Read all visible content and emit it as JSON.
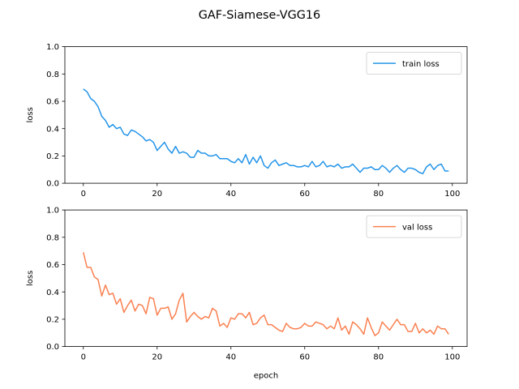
{
  "figure": {
    "title": "GAF-Siamese-VGG16"
  },
  "chart_data": [
    {
      "type": "line",
      "title": "",
      "xlabel": "",
      "ylabel": "loss",
      "xlim": [
        -5,
        104
      ],
      "ylim": [
        0,
        1.0
      ],
      "xticks": [
        0,
        20,
        40,
        60,
        80,
        100
      ],
      "yticks": [
        0.0,
        0.2,
        0.4,
        0.6,
        0.8,
        1.0
      ],
      "grid": false,
      "legend_position": "top-right",
      "series": [
        {
          "name": "train loss",
          "color": "#2394e8",
          "x": [
            0,
            1,
            2,
            3,
            4,
            5,
            6,
            7,
            8,
            9,
            10,
            11,
            12,
            13,
            14,
            15,
            16,
            17,
            18,
            19,
            20,
            21,
            22,
            23,
            24,
            25,
            26,
            27,
            28,
            29,
            30,
            31,
            32,
            33,
            34,
            35,
            36,
            37,
            38,
            39,
            40,
            41,
            42,
            43,
            44,
            45,
            46,
            47,
            48,
            49,
            50,
            51,
            52,
            53,
            54,
            55,
            56,
            57,
            58,
            59,
            60,
            61,
            62,
            63,
            64,
            65,
            66,
            67,
            68,
            69,
            70,
            71,
            72,
            73,
            74,
            75,
            76,
            77,
            78,
            79,
            80,
            81,
            82,
            83,
            84,
            85,
            86,
            87,
            88,
            89,
            90,
            91,
            92,
            93,
            94,
            95,
            96,
            97,
            98,
            99
          ],
          "values": [
            0.69,
            0.67,
            0.62,
            0.6,
            0.56,
            0.49,
            0.46,
            0.41,
            0.43,
            0.4,
            0.41,
            0.36,
            0.35,
            0.39,
            0.38,
            0.36,
            0.34,
            0.31,
            0.32,
            0.3,
            0.24,
            0.27,
            0.3,
            0.25,
            0.22,
            0.27,
            0.22,
            0.23,
            0.22,
            0.19,
            0.19,
            0.24,
            0.22,
            0.22,
            0.2,
            0.2,
            0.21,
            0.18,
            0.18,
            0.18,
            0.16,
            0.15,
            0.18,
            0.15,
            0.21,
            0.14,
            0.19,
            0.15,
            0.2,
            0.13,
            0.11,
            0.15,
            0.17,
            0.13,
            0.14,
            0.15,
            0.13,
            0.13,
            0.12,
            0.12,
            0.13,
            0.12,
            0.16,
            0.12,
            0.13,
            0.16,
            0.12,
            0.13,
            0.12,
            0.14,
            0.11,
            0.12,
            0.12,
            0.14,
            0.11,
            0.08,
            0.11,
            0.11,
            0.12,
            0.1,
            0.1,
            0.13,
            0.11,
            0.08,
            0.11,
            0.13,
            0.1,
            0.08,
            0.11,
            0.11,
            0.1,
            0.08,
            0.07,
            0.12,
            0.14,
            0.1,
            0.13,
            0.14,
            0.09,
            0.09
          ]
        }
      ]
    },
    {
      "type": "line",
      "title": "",
      "xlabel": "epoch",
      "ylabel": "loss",
      "xlim": [
        -5,
        104
      ],
      "ylim": [
        0,
        1.0
      ],
      "xticks": [
        0,
        20,
        40,
        60,
        80,
        100
      ],
      "yticks": [
        0.0,
        0.2,
        0.4,
        0.6,
        0.8,
        1.0
      ],
      "grid": false,
      "legend_position": "top-right",
      "series": [
        {
          "name": "val loss",
          "color": "#fa8050",
          "x": [
            0,
            1,
            2,
            3,
            4,
            5,
            6,
            7,
            8,
            9,
            10,
            11,
            12,
            13,
            14,
            15,
            16,
            17,
            18,
            19,
            20,
            21,
            22,
            23,
            24,
            25,
            26,
            27,
            28,
            29,
            30,
            31,
            32,
            33,
            34,
            35,
            36,
            37,
            38,
            39,
            40,
            41,
            42,
            43,
            44,
            45,
            46,
            47,
            48,
            49,
            50,
            51,
            52,
            53,
            54,
            55,
            56,
            57,
            58,
            59,
            60,
            61,
            62,
            63,
            64,
            65,
            66,
            67,
            68,
            69,
            70,
            71,
            72,
            73,
            74,
            75,
            76,
            77,
            78,
            79,
            80,
            81,
            82,
            83,
            84,
            85,
            86,
            87,
            88,
            89,
            90,
            91,
            92,
            93,
            94,
            95,
            96,
            97,
            98,
            99
          ],
          "values": [
            0.69,
            0.58,
            0.58,
            0.51,
            0.49,
            0.37,
            0.45,
            0.38,
            0.39,
            0.31,
            0.35,
            0.25,
            0.3,
            0.34,
            0.26,
            0.31,
            0.3,
            0.24,
            0.36,
            0.35,
            0.23,
            0.28,
            0.28,
            0.29,
            0.2,
            0.24,
            0.34,
            0.39,
            0.18,
            0.22,
            0.25,
            0.22,
            0.2,
            0.22,
            0.21,
            0.28,
            0.26,
            0.15,
            0.17,
            0.14,
            0.21,
            0.2,
            0.24,
            0.24,
            0.21,
            0.25,
            0.16,
            0.17,
            0.21,
            0.23,
            0.16,
            0.16,
            0.14,
            0.12,
            0.11,
            0.17,
            0.14,
            0.13,
            0.13,
            0.14,
            0.17,
            0.15,
            0.15,
            0.18,
            0.17,
            0.16,
            0.13,
            0.15,
            0.13,
            0.21,
            0.12,
            0.15,
            0.09,
            0.18,
            0.16,
            0.13,
            0.09,
            0.21,
            0.14,
            0.08,
            0.1,
            0.18,
            0.15,
            0.12,
            0.16,
            0.2,
            0.16,
            0.16,
            0.11,
            0.11,
            0.17,
            0.1,
            0.13,
            0.1,
            0.12,
            0.09,
            0.15,
            0.13,
            0.13,
            0.09
          ]
        }
      ]
    }
  ]
}
